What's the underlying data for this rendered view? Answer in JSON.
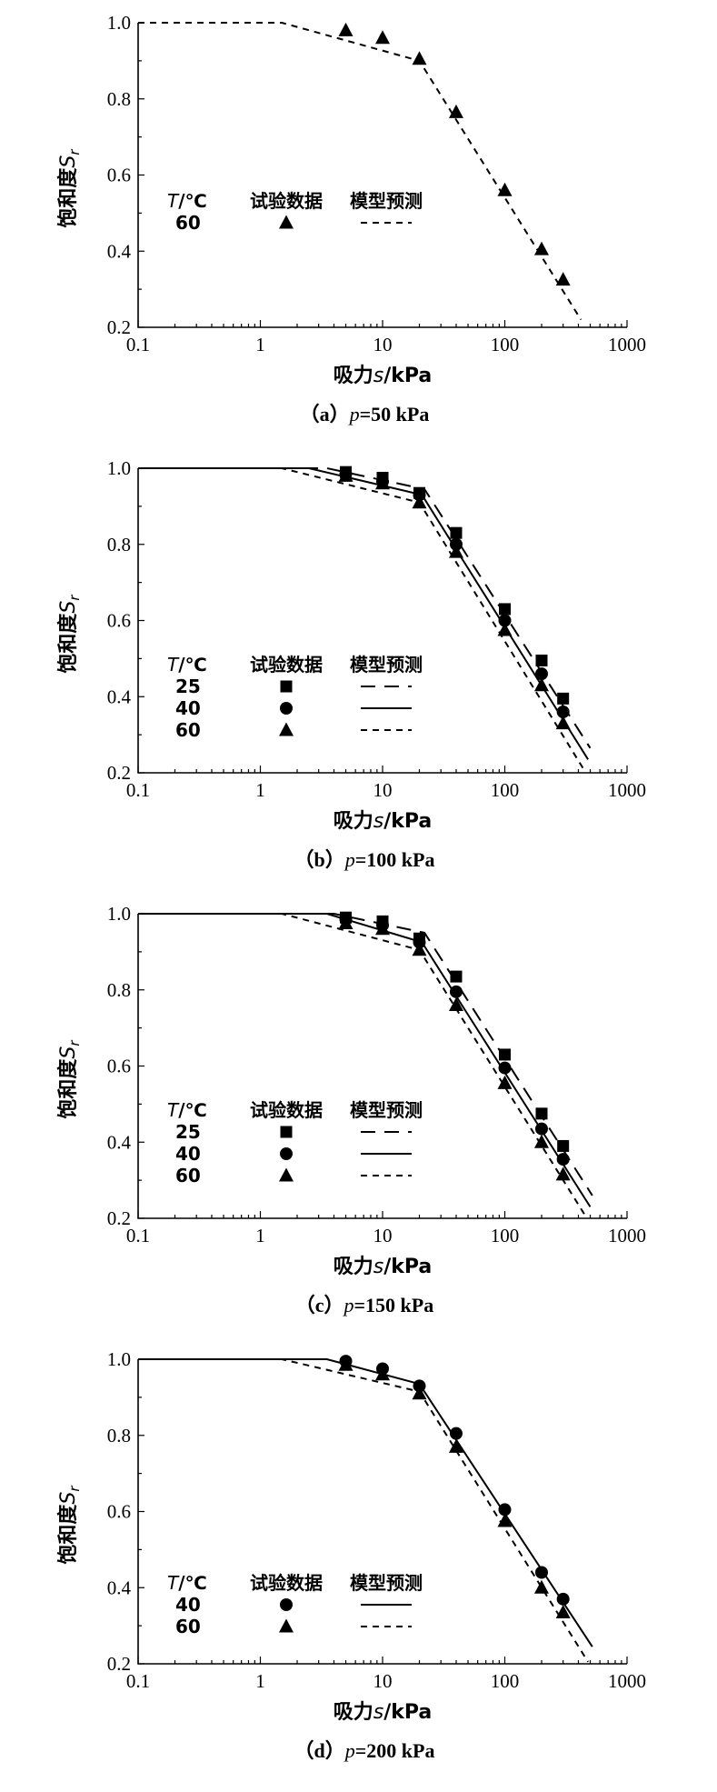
{
  "labels": {
    "ylabel_main": "饱和度",
    "ylabel_sym": "S",
    "ylabel_sub": "r",
    "xlabel_main": "吸力",
    "xlabel_sym": "s",
    "xlabel_unit": "/kPa",
    "legend_t_sym": "T",
    "legend_t_unit": "/℃",
    "legend_test": "试验数据",
    "legend_model": "模型预测"
  },
  "chart_data": [
    {
      "type": "line",
      "caption_prefix": "（a）",
      "caption_var": "p",
      "caption_value": "=50 kPa",
      "xscale": "log",
      "xlim": [
        0.1,
        1000
      ],
      "ylim": [
        0.2,
        1.0
      ],
      "xticks": [
        "0.1",
        "1",
        "10",
        "100",
        "1000"
      ],
      "yticks": [
        "0.2",
        "0.4",
        "0.6",
        "0.8",
        "1.0"
      ],
      "series": [
        {
          "name": "60",
          "marker": "triangle",
          "line_style": "short-dash",
          "points": [
            [
              5,
              0.98
            ],
            [
              10,
              0.96
            ],
            [
              20,
              0.905
            ],
            [
              40,
              0.765
            ],
            [
              100,
              0.56
            ],
            [
              200,
              0.405
            ],
            [
              300,
              0.325
            ]
          ],
          "model": [
            [
              0.1,
              1.0
            ],
            [
              1.5,
              1.0
            ],
            [
              20,
              0.9
            ],
            [
              420,
              0.22
            ]
          ]
        }
      ]
    },
    {
      "type": "line",
      "caption_prefix": "（b）",
      "caption_var": "p",
      "caption_value": "=100 kPa",
      "xscale": "log",
      "xlim": [
        0.1,
        1000
      ],
      "ylim": [
        0.2,
        1.0
      ],
      "xticks": [
        "0.1",
        "1",
        "10",
        "100",
        "1000"
      ],
      "yticks": [
        "0.2",
        "0.4",
        "0.6",
        "0.8",
        "1.0"
      ],
      "series": [
        {
          "name": "25",
          "marker": "square",
          "line_style": "long-dash",
          "points": [
            [
              5,
              0.99
            ],
            [
              10,
              0.975
            ],
            [
              20,
              0.935
            ],
            [
              40,
              0.83
            ],
            [
              100,
              0.63
            ],
            [
              200,
              0.495
            ],
            [
              300,
              0.395
            ]
          ],
          "model": [
            [
              0.1,
              1.0
            ],
            [
              3.5,
              1.0
            ],
            [
              22,
              0.945
            ],
            [
              500,
              0.265
            ]
          ]
        },
        {
          "name": "40",
          "marker": "circle",
          "line_style": "solid",
          "points": [
            [
              5,
              0.985
            ],
            [
              10,
              0.965
            ],
            [
              20,
              0.93
            ],
            [
              40,
              0.8
            ],
            [
              100,
              0.6
            ],
            [
              200,
              0.46
            ],
            [
              300,
              0.36
            ]
          ],
          "model": [
            [
              0.1,
              1.0
            ],
            [
              2.5,
              1.0
            ],
            [
              21,
              0.93
            ],
            [
              480,
              0.235
            ]
          ]
        },
        {
          "name": "60",
          "marker": "triangle",
          "line_style": "short-dash",
          "points": [
            [
              5,
              0.98
            ],
            [
              10,
              0.96
            ],
            [
              20,
              0.91
            ],
            [
              40,
              0.78
            ],
            [
              100,
              0.575
            ],
            [
              200,
              0.43
            ],
            [
              300,
              0.33
            ]
          ],
          "model": [
            [
              0.1,
              1.0
            ],
            [
              1.5,
              1.0
            ],
            [
              20,
              0.91
            ],
            [
              450,
              0.205
            ]
          ]
        }
      ]
    },
    {
      "type": "line",
      "caption_prefix": "（c）",
      "caption_var": "p",
      "caption_value": "=150 kPa",
      "xscale": "log",
      "xlim": [
        0.1,
        1000
      ],
      "ylim": [
        0.2,
        1.0
      ],
      "xticks": [
        "0.1",
        "1",
        "10",
        "100",
        "1000"
      ],
      "yticks": [
        "0.2",
        "0.4",
        "0.6",
        "0.8",
        "1.0"
      ],
      "series": [
        {
          "name": "25",
          "marker": "square",
          "line_style": "long-dash",
          "points": [
            [
              5,
              0.99
            ],
            [
              10,
              0.98
            ],
            [
              20,
              0.935
            ],
            [
              40,
              0.835
            ],
            [
              100,
              0.63
            ],
            [
              200,
              0.475
            ],
            [
              300,
              0.39
            ]
          ],
          "model": [
            [
              0.1,
              1.0
            ],
            [
              4,
              1.0
            ],
            [
              22,
              0.95
            ],
            [
              520,
              0.26
            ]
          ]
        },
        {
          "name": "40",
          "marker": "circle",
          "line_style": "solid",
          "points": [
            [
              5,
              0.985
            ],
            [
              10,
              0.97
            ],
            [
              20,
              0.925
            ],
            [
              40,
              0.795
            ],
            [
              100,
              0.595
            ],
            [
              200,
              0.435
            ],
            [
              300,
              0.355
            ]
          ],
          "model": [
            [
              0.1,
              1.0
            ],
            [
              3.5,
              1.0
            ],
            [
              21,
              0.925
            ],
            [
              500,
              0.23
            ]
          ]
        },
        {
          "name": "60",
          "marker": "triangle",
          "line_style": "short-dash",
          "points": [
            [
              5,
              0.975
            ],
            [
              10,
              0.96
            ],
            [
              20,
              0.905
            ],
            [
              40,
              0.76
            ],
            [
              100,
              0.555
            ],
            [
              200,
              0.4
            ],
            [
              300,
              0.315
            ]
          ],
          "model": [
            [
              0.1,
              1.0
            ],
            [
              1.5,
              1.0
            ],
            [
              20,
              0.905
            ],
            [
              470,
              0.2
            ]
          ]
        }
      ]
    },
    {
      "type": "line",
      "caption_prefix": "（d）",
      "caption_var": "p",
      "caption_value": "=200 kPa",
      "xscale": "log",
      "xlim": [
        0.1,
        1000
      ],
      "ylim": [
        0.2,
        1.0
      ],
      "xticks": [
        "0.1",
        "1",
        "10",
        "100",
        "1000"
      ],
      "yticks": [
        "0.2",
        "0.4",
        "0.6",
        "0.8",
        "1.0"
      ],
      "series": [
        {
          "name": "40",
          "marker": "circle",
          "line_style": "solid",
          "points": [
            [
              5,
              0.995
            ],
            [
              10,
              0.975
            ],
            [
              20,
              0.93
            ],
            [
              40,
              0.805
            ],
            [
              100,
              0.605
            ],
            [
              200,
              0.44
            ],
            [
              300,
              0.37
            ]
          ],
          "model": [
            [
              0.1,
              1.0
            ],
            [
              3.5,
              1.0
            ],
            [
              20,
              0.935
            ],
            [
              520,
              0.245
            ]
          ]
        },
        {
          "name": "60",
          "marker": "triangle",
          "line_style": "short-dash",
          "points": [
            [
              5,
              0.985
            ],
            [
              10,
              0.96
            ],
            [
              20,
              0.91
            ],
            [
              40,
              0.77
            ],
            [
              100,
              0.575
            ],
            [
              200,
              0.4
            ],
            [
              300,
              0.335
            ]
          ],
          "model": [
            [
              0.1,
              1.0
            ],
            [
              1.5,
              1.0
            ],
            [
              20,
              0.915
            ],
            [
              480,
              0.205
            ]
          ]
        }
      ]
    }
  ]
}
